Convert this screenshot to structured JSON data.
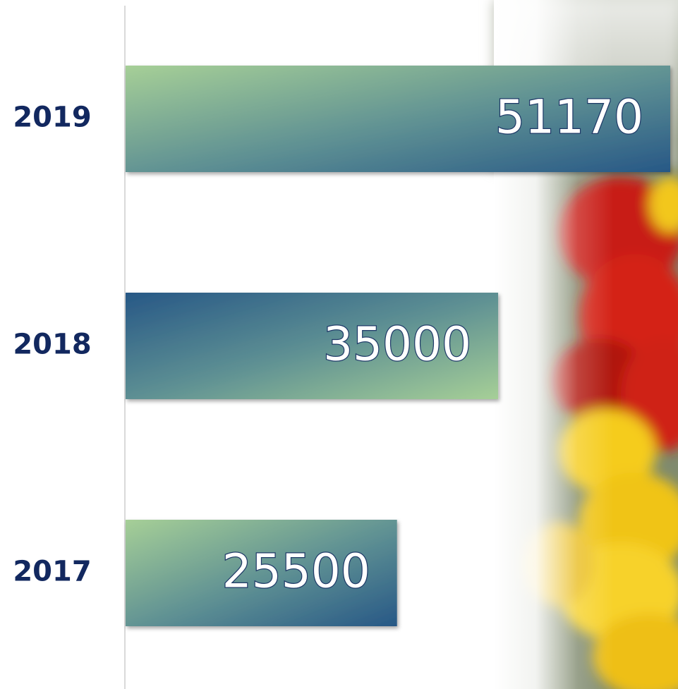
{
  "chart_data": {
    "type": "bar",
    "orientation": "horizontal",
    "categories": [
      "2019",
      "2018",
      "2017"
    ],
    "values": [
      51170,
      35000,
      25500
    ]
  }
}
